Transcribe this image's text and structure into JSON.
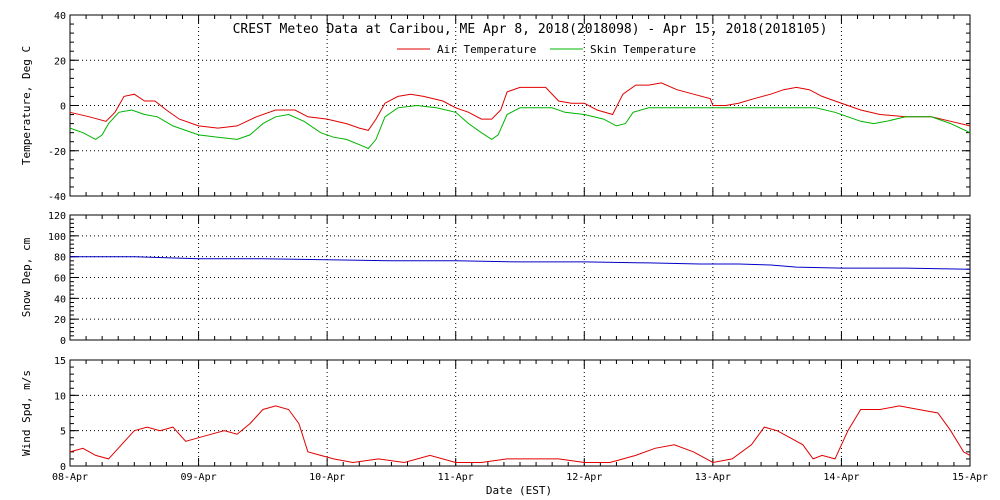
{
  "chart_data": {
    "type": "line",
    "title": "CREST Meteo Data at Caribou, ME   Apr  8, 2018(2018098) - Apr 15, 2018(2018105)",
    "xlabel": "Date (EST)",
    "x_ticks": [
      "08-Apr",
      "09-Apr",
      "10-Apr",
      "11-Apr",
      "12-Apr",
      "13-Apr",
      "14-Apr",
      "15-Apr"
    ],
    "xlim_days": [
      0,
      7
    ],
    "grid": true,
    "legend_placement": "top-center",
    "panels": [
      {
        "ylabel": "Temperature, Deg C",
        "ylim": [
          -40,
          40
        ],
        "yticks": [
          -40,
          -20,
          0,
          20,
          40
        ],
        "series": [
          {
            "name": "Air Temperature",
            "color": "#e00000",
            "points": [
              [
                0,
                -3
              ],
              [
                0.15,
                -5
              ],
              [
                0.28,
                -7
              ],
              [
                0.35,
                -3
              ],
              [
                0.42,
                4
              ],
              [
                0.5,
                5
              ],
              [
                0.58,
                2
              ],
              [
                0.66,
                2
              ],
              [
                0.75,
                -2
              ],
              [
                0.85,
                -6
              ],
              [
                1.0,
                -9
              ],
              [
                1.15,
                -10
              ],
              [
                1.3,
                -9
              ],
              [
                1.45,
                -5
              ],
              [
                1.6,
                -2
              ],
              [
                1.75,
                -2
              ],
              [
                1.85,
                -5
              ],
              [
                2.0,
                -6
              ],
              [
                2.15,
                -8
              ],
              [
                2.25,
                -10
              ],
              [
                2.32,
                -11
              ],
              [
                2.38,
                -6
              ],
              [
                2.45,
                1
              ],
              [
                2.55,
                4
              ],
              [
                2.65,
                5
              ],
              [
                2.75,
                4
              ],
              [
                2.9,
                2
              ],
              [
                3.0,
                -1
              ],
              [
                3.1,
                -3
              ],
              [
                3.2,
                -6
              ],
              [
                3.28,
                -6
              ],
              [
                3.35,
                -2
              ],
              [
                3.4,
                6
              ],
              [
                3.5,
                8
              ],
              [
                3.6,
                8
              ],
              [
                3.7,
                8
              ],
              [
                3.8,
                2
              ],
              [
                3.9,
                1
              ],
              [
                4.0,
                1
              ],
              [
                4.1,
                -2
              ],
              [
                4.22,
                -4
              ],
              [
                4.3,
                5
              ],
              [
                4.4,
                9
              ],
              [
                4.5,
                9
              ],
              [
                4.6,
                10
              ],
              [
                4.72,
                7
              ],
              [
                4.85,
                5
              ],
              [
                4.98,
                3
              ],
              [
                5.0,
                0
              ],
              [
                5.1,
                0
              ],
              [
                5.2,
                1
              ],
              [
                5.32,
                3
              ],
              [
                5.45,
                5
              ],
              [
                5.55,
                7
              ],
              [
                5.65,
                8
              ],
              [
                5.75,
                7
              ],
              [
                5.85,
                4
              ],
              [
                5.95,
                2
              ],
              [
                6.05,
                0
              ],
              [
                6.15,
                -2
              ],
              [
                6.3,
                -4
              ],
              [
                6.5,
                -5
              ],
              [
                6.7,
                -5
              ],
              [
                6.85,
                -7
              ],
              [
                7.0,
                -9
              ]
            ]
          },
          {
            "name": "Skin Temperature",
            "color": "#00b400",
            "points": [
              [
                0,
                -10
              ],
              [
                0.1,
                -12
              ],
              [
                0.2,
                -15
              ],
              [
                0.25,
                -13
              ],
              [
                0.3,
                -8
              ],
              [
                0.38,
                -3
              ],
              [
                0.48,
                -2
              ],
              [
                0.58,
                -4
              ],
              [
                0.68,
                -5
              ],
              [
                0.8,
                -9
              ],
              [
                0.9,
                -11
              ],
              [
                1.0,
                -13
              ],
              [
                1.15,
                -14
              ],
              [
                1.3,
                -15
              ],
              [
                1.4,
                -13
              ],
              [
                1.5,
                -8
              ],
              [
                1.6,
                -5
              ],
              [
                1.7,
                -4
              ],
              [
                1.82,
                -7
              ],
              [
                1.95,
                -12
              ],
              [
                2.05,
                -14
              ],
              [
                2.15,
                -15
              ],
              [
                2.28,
                -18
              ],
              [
                2.32,
                -19
              ],
              [
                2.38,
                -15
              ],
              [
                2.45,
                -5
              ],
              [
                2.55,
                -1
              ],
              [
                2.7,
                0
              ],
              [
                2.85,
                -1
              ],
              [
                3.0,
                -3
              ],
              [
                3.1,
                -8
              ],
              [
                3.2,
                -12
              ],
              [
                3.28,
                -15
              ],
              [
                3.33,
                -13
              ],
              [
                3.4,
                -4
              ],
              [
                3.5,
                -1
              ],
              [
                3.6,
                -1
              ],
              [
                3.75,
                -1
              ],
              [
                3.85,
                -3
              ],
              [
                4.0,
                -4
              ],
              [
                4.15,
                -6
              ],
              [
                4.25,
                -9
              ],
              [
                4.32,
                -8
              ],
              [
                4.38,
                -3
              ],
              [
                4.5,
                -1
              ],
              [
                4.7,
                -1
              ],
              [
                4.85,
                -1
              ],
              [
                5.0,
                -1
              ],
              [
                5.2,
                -1
              ],
              [
                5.4,
                -1
              ],
              [
                5.6,
                -1
              ],
              [
                5.8,
                -1
              ],
              [
                5.95,
                -3
              ],
              [
                6.05,
                -5
              ],
              [
                6.15,
                -7
              ],
              [
                6.25,
                -8
              ],
              [
                6.35,
                -7
              ],
              [
                6.5,
                -5
              ],
              [
                6.7,
                -5
              ],
              [
                6.85,
                -8
              ],
              [
                7.0,
                -12
              ]
            ]
          }
        ]
      },
      {
        "ylabel": "Snow Dep, cm",
        "ylim": [
          0,
          120
        ],
        "yticks": [
          0,
          20,
          40,
          60,
          80,
          100,
          120
        ],
        "series": [
          {
            "name": "Snow Depth",
            "color": "#0000c8",
            "points": [
              [
                0,
                80
              ],
              [
                0.5,
                80
              ],
              [
                1.0,
                78
              ],
              [
                1.5,
                78
              ],
              [
                2.0,
                77
              ],
              [
                2.5,
                76
              ],
              [
                3.0,
                76
              ],
              [
                3.5,
                75
              ],
              [
                4.0,
                75
              ],
              [
                4.5,
                74
              ],
              [
                4.9,
                73
              ],
              [
                5.2,
                73
              ],
              [
                5.45,
                72
              ],
              [
                5.65,
                70
              ],
              [
                6.0,
                69
              ],
              [
                6.5,
                69
              ],
              [
                7.0,
                68
              ]
            ]
          }
        ]
      },
      {
        "ylabel": "Wind Spd, m/s",
        "ylim": [
          0,
          15
        ],
        "yticks": [
          0,
          5,
          10,
          15
        ],
        "series": [
          {
            "name": "Wind Speed",
            "color": "#e00000",
            "points": [
              [
                0,
                2
              ],
              [
                0.1,
                2.5
              ],
              [
                0.2,
                1.5
              ],
              [
                0.3,
                1
              ],
              [
                0.4,
                3
              ],
              [
                0.5,
                5
              ],
              [
                0.6,
                5.5
              ],
              [
                0.7,
                5
              ],
              [
                0.8,
                5.5
              ],
              [
                0.9,
                3.5
              ],
              [
                1.0,
                4
              ],
              [
                1.1,
                4.5
              ],
              [
                1.2,
                5
              ],
              [
                1.3,
                4.5
              ],
              [
                1.4,
                6
              ],
              [
                1.5,
                8
              ],
              [
                1.6,
                8.5
              ],
              [
                1.7,
                8
              ],
              [
                1.78,
                6
              ],
              [
                1.85,
                2
              ],
              [
                1.95,
                1.5
              ],
              [
                2.05,
                1
              ],
              [
                2.2,
                0.5
              ],
              [
                2.4,
                1
              ],
              [
                2.6,
                0.5
              ],
              [
                2.8,
                1.5
              ],
              [
                3.0,
                0.5
              ],
              [
                3.2,
                0.5
              ],
              [
                3.4,
                1
              ],
              [
                3.6,
                1
              ],
              [
                3.8,
                1
              ],
              [
                4.0,
                0.5
              ],
              [
                4.2,
                0.5
              ],
              [
                4.4,
                1.5
              ],
              [
                4.55,
                2.5
              ],
              [
                4.7,
                3
              ],
              [
                4.85,
                2
              ],
              [
                5.0,
                0.5
              ],
              [
                5.15,
                1
              ],
              [
                5.3,
                3
              ],
              [
                5.4,
                5.5
              ],
              [
                5.5,
                5
              ],
              [
                5.6,
                4
              ],
              [
                5.7,
                3
              ],
              [
                5.78,
                1
              ],
              [
                5.85,
                1.5
              ],
              [
                5.95,
                1
              ],
              [
                6.05,
                5
              ],
              [
                6.15,
                8
              ],
              [
                6.3,
                8
              ],
              [
                6.45,
                8.5
              ],
              [
                6.6,
                8
              ],
              [
                6.75,
                7.5
              ],
              [
                6.85,
                5
              ],
              [
                6.95,
                2
              ],
              [
                7.0,
                1.5
              ]
            ]
          }
        ]
      }
    ]
  }
}
